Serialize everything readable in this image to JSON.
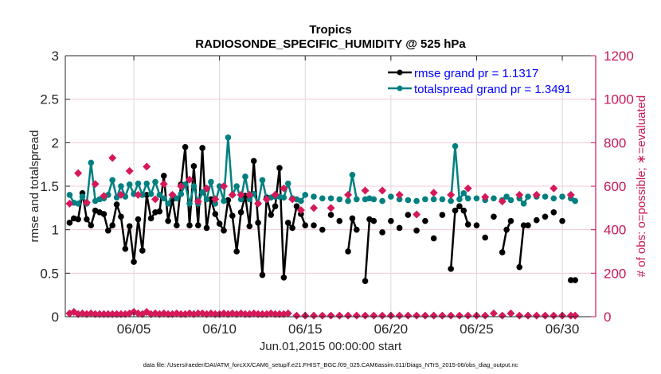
{
  "chart_data": {
    "type": "line",
    "title": "Tropics",
    "subtitle": "RADIOSONDE_SPECIFIC_HUMIDITY @ 525 hPa",
    "xlabel": "Jun.01,2015 00:00:00 start",
    "ylabel_left": "rmse and totalspread",
    "ylabel_right": "# of obs: o=possible; ∗=evaluated",
    "footnote": "data file: /Users/raeder/DAI/ATM_forcXX/CAM6_setup/f.e21.FHIST_BGC.f09_025.CAM6assim.011/Diags_NTrS_2015-06/obs_diag_output.nc",
    "xlim_days": [
      0,
      30
    ],
    "x_unit": "days since 2015-06-01 00:00",
    "x_ticks": [
      {
        "day": 4,
        "label": "06/05"
      },
      {
        "day": 9,
        "label": "06/10"
      },
      {
        "day": 14,
        "label": "06/15"
      },
      {
        "day": 19,
        "label": "06/20"
      },
      {
        "day": 24,
        "label": "06/25"
      },
      {
        "day": 29,
        "label": "06/30"
      }
    ],
    "ylim_left": [
      0,
      3
    ],
    "yticks_left": [
      "0",
      "0.5",
      "1",
      "1.5",
      "2",
      "2.5",
      "3"
    ],
    "yticks_left_values": [
      0,
      0.5,
      1,
      1.5,
      2,
      2.5,
      3
    ],
    "ylim_right": [
      0,
      1200
    ],
    "yticks_right": [
      "0",
      "200",
      "400",
      "600",
      "800",
      "1000",
      "1200"
    ],
    "yticks_right_values": [
      0,
      200,
      400,
      600,
      800,
      1000,
      1200
    ],
    "grid": true,
    "legend": {
      "position": "top-right",
      "entries": [
        {
          "label": "rmse grand pr = 1.1317",
          "color": "#000000"
        },
        {
          "label": "totalspread grand pr = 1.3491",
          "color": "#008080"
        }
      ],
      "text_color": "#0000ff"
    },
    "colors": {
      "rmse": "#000000",
      "totalspread": "#008080",
      "obs": "#d6185a",
      "right_axis": "#c8175a",
      "grid": "#f0c8d8",
      "vgrid": "#d9d9d9"
    },
    "series": [
      {
        "name": "rmse",
        "axis": "left",
        "x_days": [
          0.25,
          0.5,
          0.75,
          1,
          1.25,
          1.5,
          1.75,
          2,
          2.25,
          2.5,
          2.75,
          3,
          3.25,
          3.5,
          3.75,
          4,
          4.25,
          4.5,
          4.75,
          5,
          5.25,
          5.5,
          5.75,
          6,
          6.25,
          6.5,
          6.75,
          7,
          7.25,
          7.5,
          7.75,
          8,
          8.25,
          8.5,
          8.75,
          9,
          9.25,
          9.5,
          9.75,
          10,
          10.25,
          10.5,
          10.75,
          11,
          11.25,
          11.5,
          11.75,
          12,
          12.25,
          12.5,
          12.75,
          13,
          13.25,
          13.5,
          13.75,
          14,
          14.5,
          15,
          15.5,
          16,
          16.5,
          16.75,
          17,
          17.5,
          17.75,
          18,
          18.5,
          19,
          19.5,
          20,
          20.5,
          21,
          21.5,
          22,
          22.5,
          22.75,
          23,
          23.25,
          23.5,
          24,
          24.5,
          25,
          25.5,
          25.75,
          26,
          26.5,
          26.75,
          27,
          27.5,
          28,
          28.5,
          29,
          29.5,
          29.75
        ],
        "values": [
          1.08,
          1.13,
          1.12,
          1.42,
          1.12,
          1.05,
          1.22,
          1.2,
          1.18,
          0.99,
          1.05,
          1.29,
          1.15,
          0.78,
          1.04,
          0.63,
          1.12,
          0.76,
          1.4,
          1.13,
          1.2,
          1.21,
          1.62,
          1.1,
          1.35,
          1.05,
          1.52,
          1.95,
          1.05,
          1.73,
          1.05,
          1.94,
          1.02,
          1.35,
          1.18,
          1.07,
          0.99,
          1.34,
          1.16,
          0.75,
          1.2,
          1.39,
          1.04,
          1.79,
          1.08,
          0.48,
          1.37,
          1.17,
          1.27,
          1.71,
          0.45,
          1.08,
          1.02,
          1.27,
          1.18,
          1.05,
          1.05,
          1.0,
          1.17,
          1.1,
          0.75,
          1.13,
          1.0,
          0.41,
          1.12,
          1.1,
          0.97,
          1.1,
          1.02,
          1.17,
          0.99,
          1.1,
          0.9,
          1.17,
          0.55,
          1.22,
          1.27,
          1.22,
          1.06,
          1.05,
          0.91,
          1.15,
          0.74,
          1.0,
          1.1,
          0.57,
          1.05,
          1.05,
          1.11,
          1.15,
          1.2,
          1.1,
          0.42,
          0.42
        ]
      },
      {
        "name": "totalspread",
        "axis": "left",
        "x_days": [
          0.25,
          0.5,
          0.75,
          1,
          1.25,
          1.5,
          1.75,
          2,
          2.25,
          2.5,
          2.75,
          3,
          3.25,
          3.5,
          3.75,
          4,
          4.25,
          4.5,
          4.75,
          5,
          5.25,
          5.5,
          5.75,
          6,
          6.25,
          6.5,
          6.75,
          7,
          7.25,
          7.5,
          7.75,
          8,
          8.25,
          8.5,
          8.75,
          9,
          9.25,
          9.5,
          9.75,
          10,
          10.25,
          10.5,
          10.75,
          11,
          11.25,
          11.5,
          11.75,
          12,
          12.25,
          12.5,
          12.75,
          13,
          13.25,
          13.5,
          13.75,
          14,
          14.5,
          15,
          15.5,
          16,
          16.5,
          16.75,
          17,
          17.5,
          17.75,
          18,
          18.5,
          19,
          19.5,
          20,
          20.5,
          21,
          21.5,
          22,
          22.5,
          22.75,
          23,
          23.25,
          23.5,
          24,
          24.5,
          25,
          25.5,
          25.75,
          26,
          26.5,
          26.75,
          27,
          27.5,
          28,
          28.5,
          29,
          29.5,
          29.75
        ],
        "values": [
          1.4,
          1.31,
          1.3,
          1.38,
          1.3,
          1.77,
          1.33,
          1.35,
          1.36,
          1.4,
          1.57,
          1.37,
          1.5,
          1.38,
          1.52,
          1.41,
          1.53,
          1.4,
          1.53,
          1.41,
          1.55,
          1.4,
          1.36,
          1.3,
          1.4,
          1.36,
          1.41,
          1.52,
          1.3,
          1.5,
          1.3,
          1.43,
          1.35,
          1.55,
          1.3,
          1.5,
          1.33,
          2.06,
          1.4,
          1.5,
          1.35,
          1.61,
          1.35,
          1.41,
          1.3,
          1.57,
          1.35,
          1.37,
          1.38,
          1.38,
          1.37,
          1.53,
          1.36,
          1.35,
          1.33,
          1.4,
          1.38,
          1.36,
          1.36,
          1.35,
          1.33,
          1.63,
          1.35,
          1.35,
          1.36,
          1.35,
          1.33,
          1.38,
          1.35,
          1.34,
          1.33,
          1.35,
          1.35,
          1.35,
          1.33,
          1.96,
          1.35,
          1.42,
          1.36,
          1.36,
          1.34,
          1.36,
          1.34,
          1.38,
          1.34,
          1.36,
          1.3,
          1.38,
          1.38,
          1.38,
          1.36,
          1.38,
          1.36,
          1.33
        ]
      },
      {
        "name": "obs_possible",
        "axis": "right",
        "marker": "o",
        "note": "markers near top band (approx 500-700 obs)",
        "x_days": [
          0.25,
          0.75,
          1.25,
          1.75,
          2.25,
          2.75,
          3.25,
          3.75,
          4.25,
          4.75,
          5.25,
          5.75,
          6.25,
          6.75,
          7.25,
          7.75,
          8.25,
          8.75,
          9.25,
          9.75,
          10.25,
          10.75,
          11.25,
          11.75,
          12.25,
          12.75,
          13.25,
          13.75,
          14.5,
          15.5,
          16.5,
          17.5,
          18.5,
          19.5,
          20.5,
          21.5,
          22.5,
          23.5,
          24.5,
          25.5,
          26.5,
          27.5,
          28.5,
          29.5
        ],
        "values": [
          520,
          660,
          525,
          610,
          555,
          730,
          560,
          670,
          560,
          690,
          540,
          610,
          560,
          600,
          630,
          530,
          590,
          540,
          600,
          560,
          560,
          560,
          520,
          540,
          560,
          590,
          540,
          490,
          500,
          500,
          560,
          580,
          580,
          560,
          470,
          570,
          560,
          590,
          550,
          530,
          560,
          560,
          590,
          560
        ]
      },
      {
        "name": "obs_evaluated",
        "axis": "right",
        "marker": "*",
        "x_days": [
          0.25,
          0.5,
          0.75,
          1,
          1.25,
          1.5,
          1.75,
          2,
          2.25,
          2.5,
          2.75,
          3,
          3.25,
          3.5,
          3.75,
          4,
          4.25,
          4.5,
          4.75,
          5,
          5.25,
          5.5,
          5.75,
          6,
          6.25,
          6.5,
          6.75,
          7,
          7.25,
          7.5,
          7.75,
          8,
          8.25,
          8.5,
          8.75,
          9,
          9.25,
          9.5,
          9.75,
          10,
          10.25,
          10.5,
          10.75,
          11,
          11.25,
          11.5,
          11.75,
          12,
          12.25,
          12.5,
          12.75,
          13,
          13.5,
          14,
          14.5,
          15,
          15.5,
          16,
          16.5,
          17,
          17.5,
          18,
          18.5,
          19,
          19.5,
          20,
          20.5,
          21,
          21.5,
          22,
          22.5,
          23,
          23.5,
          24,
          24.5,
          25,
          25.5,
          26,
          26.5,
          27,
          27.5,
          28,
          28.5,
          29,
          29.5,
          29.75
        ],
        "values": [
          15,
          22,
          12,
          15,
          12,
          15,
          12,
          12,
          12,
          12,
          12,
          12,
          12,
          12,
          15,
          22,
          15,
          12,
          22,
          12,
          15,
          12,
          15,
          12,
          12,
          15,
          12,
          12,
          15,
          12,
          15,
          15,
          12,
          15,
          12,
          12,
          15,
          12,
          15,
          12,
          15,
          12,
          12,
          15,
          12,
          12,
          12,
          15,
          12,
          12,
          12,
          15,
          5,
          5,
          5,
          5,
          5,
          5,
          5,
          5,
          5,
          5,
          5,
          5,
          5,
          5,
          5,
          5,
          5,
          5,
          5,
          5,
          5,
          5,
          5,
          15,
          5,
          15,
          5,
          5,
          5,
          5,
          5,
          5,
          5,
          5
        ]
      }
    ]
  }
}
